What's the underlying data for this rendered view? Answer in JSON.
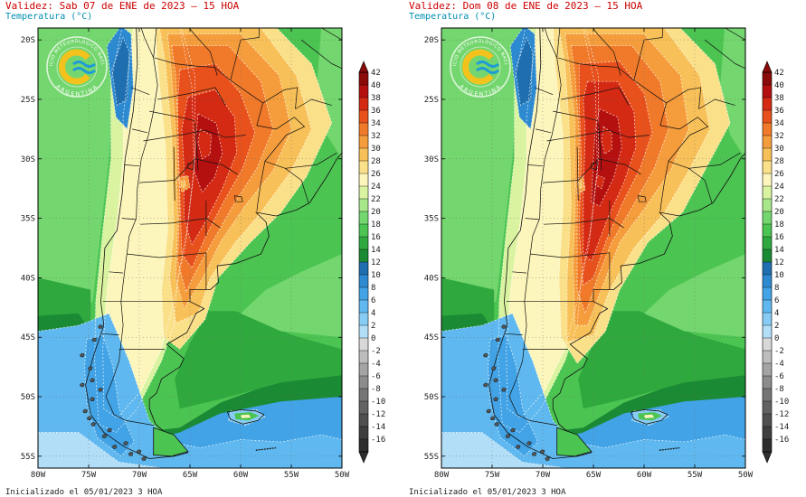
{
  "panels": [
    {
      "title": "Validez: Sab 07 de ENE de 2023 — 15 HOA",
      "subtitle": "Temperatura (°C)",
      "footer": "Inicializado el 05/01/2023 3 HOA"
    },
    {
      "title": "Validez: Dom 08 de ENE de 2023 — 15 HOA",
      "subtitle": "Temperatura (°C)",
      "footer": "Inicializado el 05/01/2023 3 HOA"
    }
  ],
  "logo": {
    "top_text": "SERVICIO METEOROLÓGICO NACIONAL",
    "bottom_text": "ARGENTINA"
  },
  "axes": {
    "lat_labels": [
      "20S",
      "25S",
      "30S",
      "35S",
      "40S",
      "45S",
      "50S",
      "55S"
    ],
    "lon_labels": [
      "80W",
      "75W",
      "70W",
      "65W",
      "60W",
      "55W",
      "50W"
    ]
  },
  "colorbar": {
    "labels": [
      "42",
      "40",
      "38",
      "36",
      "34",
      "32",
      "30",
      "28",
      "26",
      "24",
      "22",
      "20",
      "18",
      "16",
      "14",
      "12",
      "10",
      "8",
      "6",
      "4",
      "2",
      "0",
      "-2",
      "-4",
      "-6",
      "-8",
      "-10",
      "-12",
      "-14",
      "-16"
    ],
    "colors": [
      "#8b0a0a",
      "#b41010",
      "#d42a14",
      "#e8501c",
      "#f07a2a",
      "#f59d3c",
      "#f8c058",
      "#fbe08a",
      "#fdf6bc",
      "#d9f3a0",
      "#a8e68a",
      "#74d66e",
      "#4cc452",
      "#2fa93e",
      "#1b8a34",
      "#1f6fb0",
      "#2e8ad0",
      "#42a3e6",
      "#5fb8ef",
      "#86ccf4",
      "#b2def8",
      "#d8d8d8",
      "#bdbdbd",
      "#a4a4a4",
      "#8c8c8c",
      "#767676",
      "#626262",
      "#505050",
      "#3e3e3e",
      "#2e2e2e"
    ]
  }
}
